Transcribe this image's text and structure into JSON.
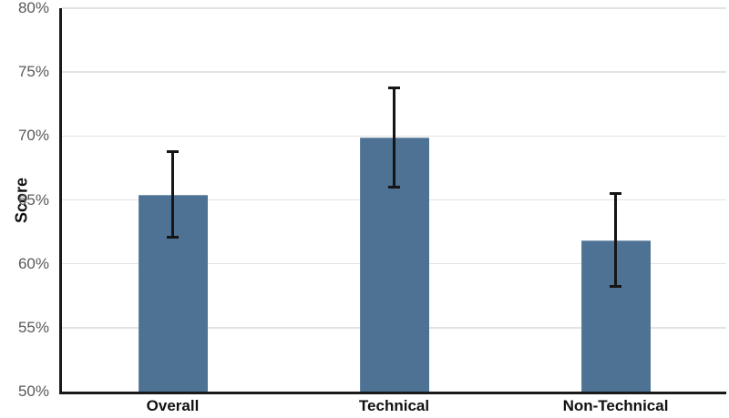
{
  "chart_data": {
    "type": "bar",
    "title": "",
    "ylabel": "Score",
    "xlabel": "",
    "categories": [
      "Overall",
      "Technical",
      "Non-Technical"
    ],
    "values": [
      65.4,
      69.9,
      61.8
    ],
    "error_low": [
      62.1,
      66.0,
      58.2
    ],
    "error_high": [
      68.8,
      73.8,
      65.5
    ],
    "ylim": [
      50,
      80
    ],
    "yticks": [
      50,
      55,
      60,
      65,
      70,
      75,
      80
    ],
    "ytick_labels": [
      "50%",
      "55%",
      "60%",
      "65%",
      "70%",
      "75%",
      "80%"
    ],
    "grid": true,
    "legend": "none",
    "bar_color": "#4d7294",
    "error_bar_color": "#151515",
    "axis_color": "#1a1a1a",
    "gridline_color": "#e3e3e3",
    "tick_label_color": "#595959",
    "category_label_color": "#111111"
  }
}
